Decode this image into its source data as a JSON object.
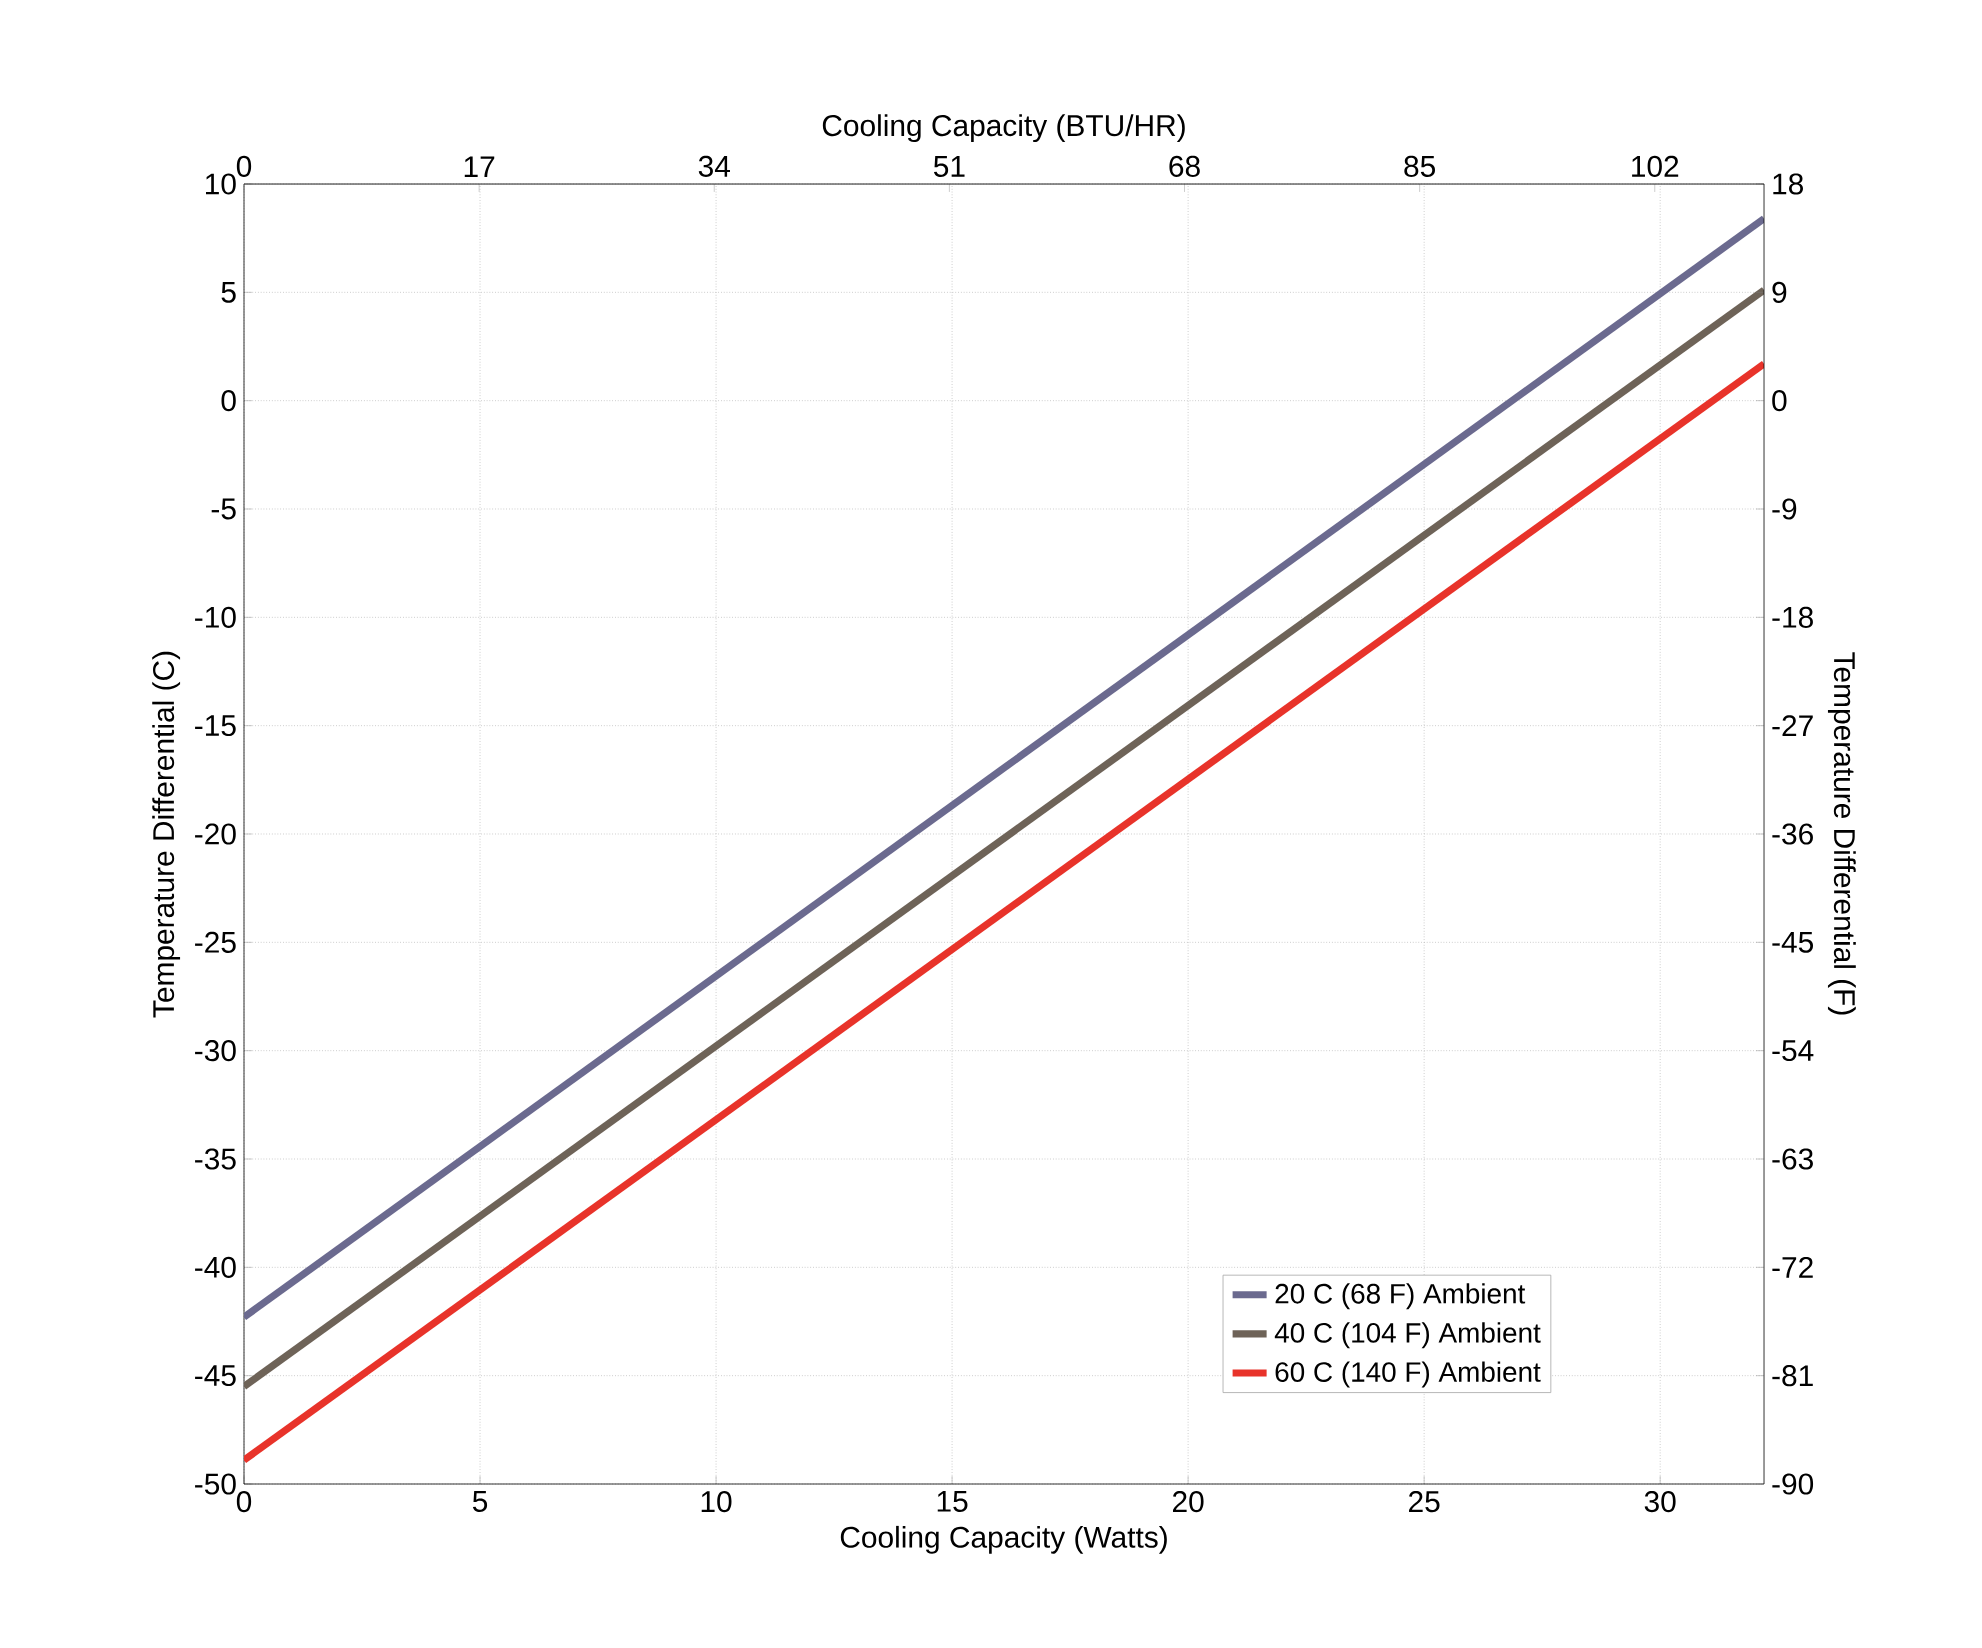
{
  "chart_data": {
    "type": "line",
    "xlabel": "Cooling Capacity (Watts)",
    "ylabel": "Temperature Differential (C)",
    "x2label": "Cooling Capacity (BTU/HR)",
    "y2label": "Temperature Differential (F)",
    "x": [
      0,
      32.2
    ],
    "series": [
      {
        "name": "20 C (68 F) Ambient",
        "color": "#6b6a8f",
        "values": [
          -42.3,
          8.4
        ]
      },
      {
        "name": "40 C (104 F) Ambient",
        "color": "#6e6358",
        "values": [
          -45.5,
          5.1
        ]
      },
      {
        "name": "60 C (140 F) Ambient",
        "color": "#e8332a",
        "values": [
          -48.9,
          1.7
        ]
      }
    ],
    "xlim": [
      0,
      32.2
    ],
    "xticks": [
      0,
      5,
      10,
      15,
      20,
      25,
      30
    ],
    "ylim": [
      -50,
      10
    ],
    "yticks": [
      -50,
      -45,
      -40,
      -35,
      -30,
      -25,
      -20,
      -15,
      -10,
      -5,
      0,
      5,
      10
    ],
    "x2lim": [
      0,
      109.9
    ],
    "x2ticks": [
      0,
      17,
      34,
      51,
      68,
      85,
      102
    ],
    "y2lim": [
      -90,
      18
    ],
    "y2ticks": [
      -90,
      -81,
      -72,
      -63,
      -54,
      -45,
      -36,
      -27,
      -18,
      -9,
      0,
      9,
      18
    ],
    "grid": true,
    "legend": "bottom right",
    "marker": "none",
    "line_style": "solid"
  }
}
